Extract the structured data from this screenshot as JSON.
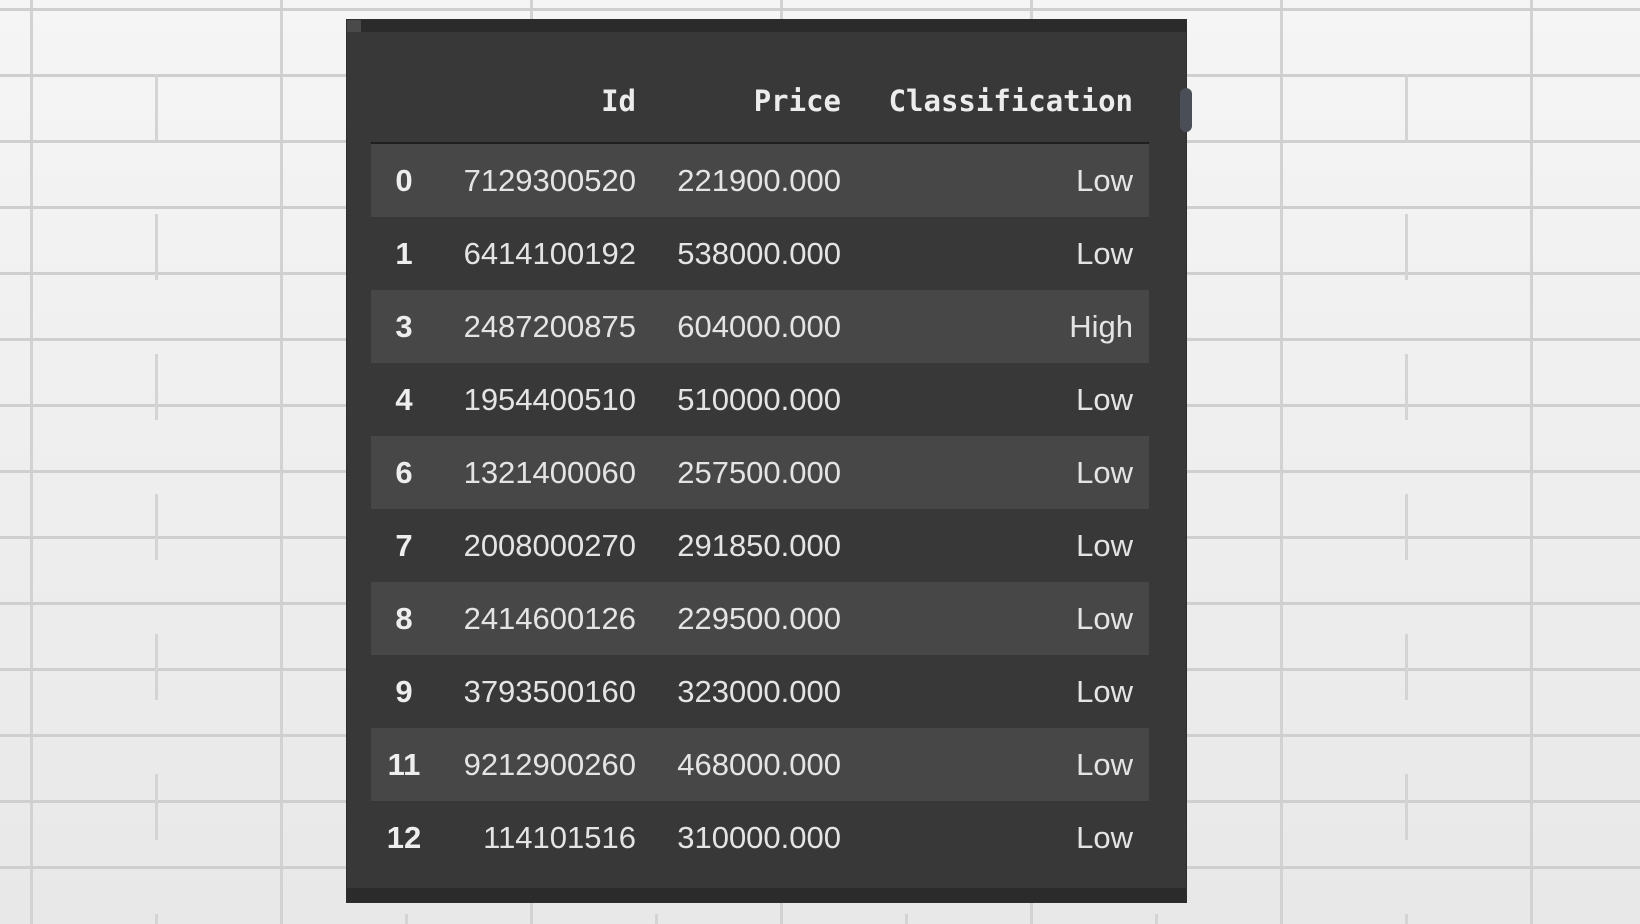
{
  "table": {
    "columns": [
      "Id",
      "Price",
      "Classification"
    ],
    "rows": [
      {
        "index": "0",
        "Id": "7129300520",
        "Price": "221900.000",
        "Classification": "Low"
      },
      {
        "index": "1",
        "Id": "6414100192",
        "Price": "538000.000",
        "Classification": "Low"
      },
      {
        "index": "3",
        "Id": "2487200875",
        "Price": "604000.000",
        "Classification": "High"
      },
      {
        "index": "4",
        "Id": "1954400510",
        "Price": "510000.000",
        "Classification": "Low"
      },
      {
        "index": "6",
        "Id": "1321400060",
        "Price": "257500.000",
        "Classification": "Low"
      },
      {
        "index": "7",
        "Id": "2008000270",
        "Price": "291850.000",
        "Classification": "Low"
      },
      {
        "index": "8",
        "Id": "2414600126",
        "Price": "229500.000",
        "Classification": "Low"
      },
      {
        "index": "9",
        "Id": "3793500160",
        "Price": "323000.000",
        "Classification": "Low"
      },
      {
        "index": "11",
        "Id": "9212900260",
        "Price": "468000.000",
        "Classification": "Low"
      },
      {
        "index": "12",
        "Id": "114101516",
        "Price": "310000.000",
        "Classification": "Low"
      }
    ]
  },
  "colors": {
    "panel_background": "#383838",
    "striped_row": "#474747",
    "text": "#e4e4e4",
    "wall": "#e9e9e9"
  }
}
